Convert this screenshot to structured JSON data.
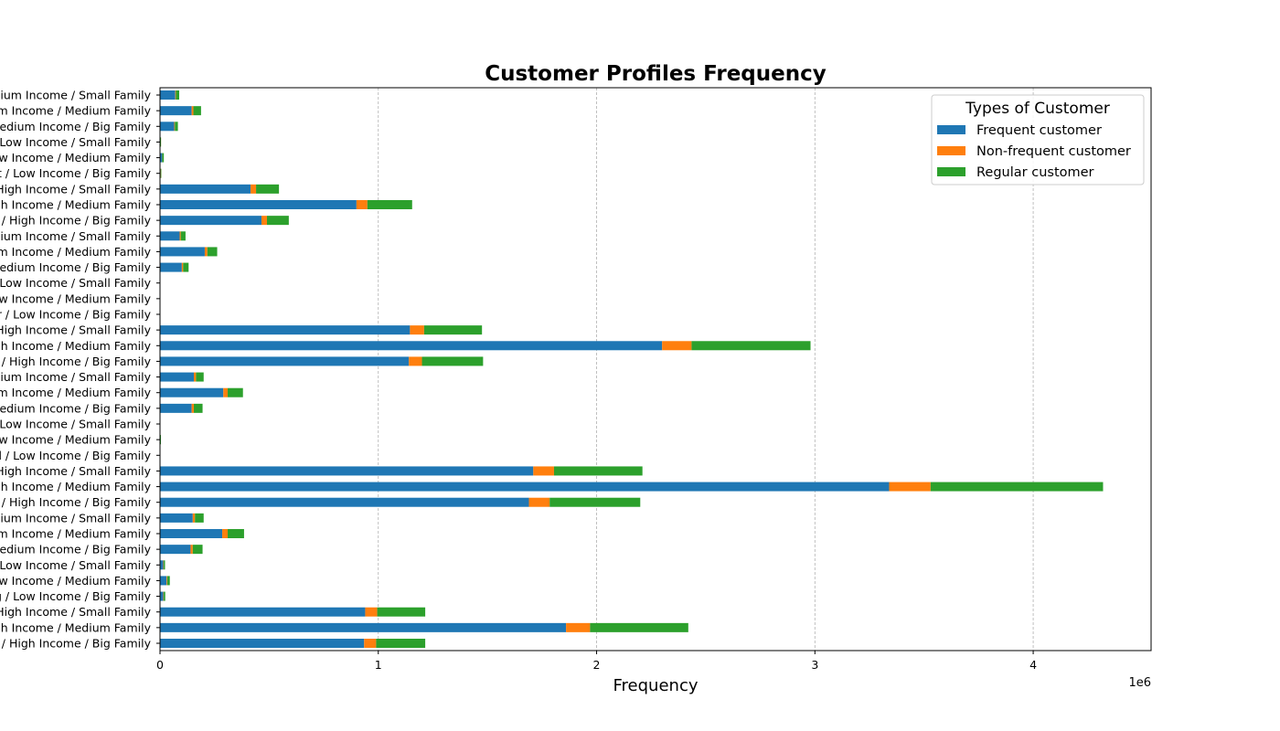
{
  "chart_data": {
    "type": "bar",
    "orientation": "horizontal",
    "stacked": true,
    "title": "Customer Profiles Frequency",
    "xlabel": "Frequency",
    "ylabel": "",
    "x_scale_note": "1e6",
    "xlim": [
      0,
      4540000
    ],
    "xticks": [
      0,
      1000000,
      2000000,
      3000000,
      4000000
    ],
    "xtick_labels": [
      "0",
      "1",
      "2",
      "3",
      "4"
    ],
    "grid": "vertical dashed",
    "legend_title": "Types of Customer",
    "legend_position": "top-right",
    "categories": [
      "Young / High Income / Big Family",
      "Young / High Income / Medium Family",
      "Young / High Income / Small Family",
      "Young / Low Income / Big Family",
      "Young / Low Income / Medium Family",
      "Young / Low Income / Small Family",
      "Young / Medium Income / Big Family",
      "Young / Medium Income / Medium Family",
      "Young / Medium Income / Small Family",
      "Middle Aged / High Income / Big Family",
      "Middle Aged / High Income / Medium Family",
      "Middle Aged / High Income / Small Family",
      "Middle Aged / Low Income / Big Family",
      "Middle Aged / Low Income / Medium Family",
      "Middle Aged / Low Income / Small Family",
      "Middle Aged / Medium Income / Big Family",
      "Middle Aged / Medium Income / Medium Family",
      "Middle Aged / Medium Income / Small Family",
      "Senior / High Income / Big Family",
      "Senior / High Income / Medium Family",
      "Senior / High Income / Small Family",
      "Senior / Low Income / Big Family",
      "Senior / Low Income / Medium Family",
      "Senior / Low Income / Small Family",
      "Senior / Medium Income / Big Family",
      "Senior / Medium Income / Medium Family",
      "Senior / Medium Income / Small Family",
      "Adult / High Income / Big Family",
      "Adult / High Income / Medium Family",
      "Adult / High Income / Small Family",
      "Adult / Low Income / Big Family",
      "Adult / Low Income / Medium Family",
      "Adult / Low Income / Small Family",
      "Adult / Medium Income / Big Family",
      "Adult / Medium Income / Medium Family",
      "Adult / Medium Income / Small Family"
    ],
    "series": [
      {
        "name": "Frequent customer",
        "color": "#1f77b4",
        "values": [
          935000,
          1860000,
          940000,
          15000,
          30000,
          15000,
          140000,
          285000,
          150000,
          1690000,
          3340000,
          1710000,
          0,
          1500,
          0,
          145000,
          290000,
          155000,
          1140000,
          2300000,
          1145000,
          0,
          0,
          0,
          100000,
          205000,
          90000,
          465000,
          900000,
          415000,
          3000,
          10000,
          2000,
          65000,
          145000,
          70000
        ]
      },
      {
        "name": "Non-frequent customer",
        "color": "#ff7f0e",
        "values": [
          55000,
          110000,
          55000,
          2000,
          3000,
          2000,
          10000,
          25000,
          10000,
          95000,
          190000,
          95000,
          0,
          200,
          0,
          10000,
          20000,
          10000,
          60000,
          135000,
          65000,
          0,
          0,
          0,
          6000,
          12000,
          5000,
          25000,
          50000,
          25000,
          200,
          500,
          200,
          3000,
          8000,
          3000
        ]
      },
      {
        "name": "Regular customer",
        "color": "#2ca02c",
        "values": [
          225000,
          450000,
          220000,
          7000,
          12000,
          6000,
          45000,
          75000,
          40000,
          415000,
          790000,
          405000,
          0,
          1800,
          0,
          40000,
          70000,
          35000,
          280000,
          545000,
          265000,
          0,
          0,
          0,
          25000,
          45000,
          22000,
          100000,
          205000,
          105000,
          2000,
          7000,
          1500,
          14000,
          35000,
          15000
        ]
      }
    ]
  }
}
